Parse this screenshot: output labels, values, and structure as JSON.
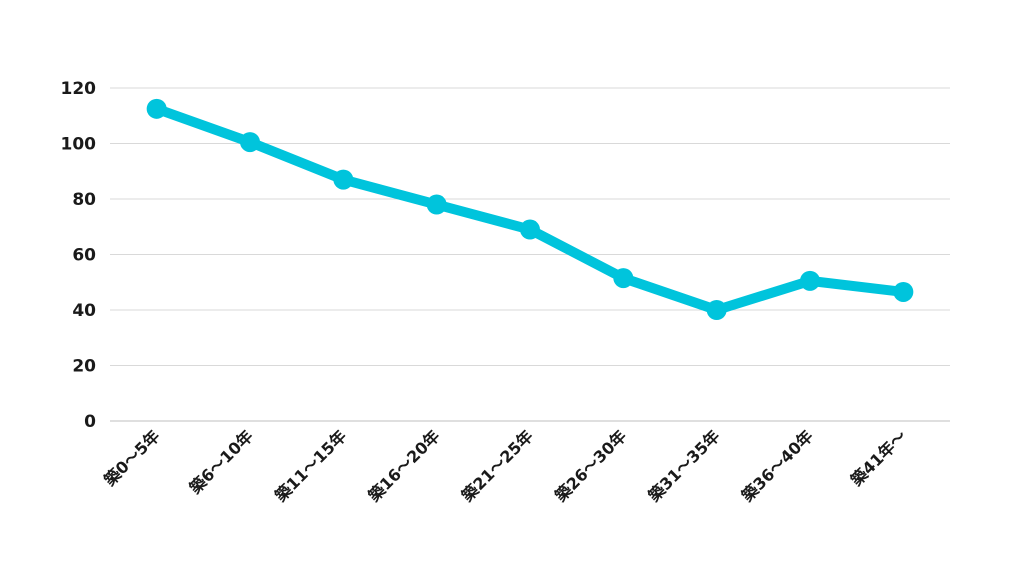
{
  "chart_data": {
    "type": "line",
    "title": "",
    "xlabel": "",
    "ylabel": "",
    "categories": [
      "築0～5年",
      "築6～10年",
      "築11～15年",
      "築16～20年",
      "築21～25年",
      "築26～30年",
      "築31～35年",
      "築36～40年",
      "築41年～"
    ],
    "series": [
      {
        "values": [
          112.5,
          100.5,
          87,
          78,
          69,
          51.5,
          40,
          50.5,
          46.5
        ]
      }
    ],
    "ylim": [
      0,
      120
    ],
    "yticks": [
      0,
      20,
      40,
      60,
      80,
      100,
      120
    ],
    "grid": true,
    "legend": "none",
    "line_color": "#00c4dc"
  }
}
